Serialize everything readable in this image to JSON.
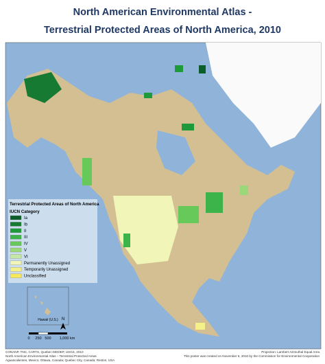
{
  "header": {
    "title": "North American Environmental Atlas -",
    "subtitle": "Terrestrial Protected Areas of North America, 2010"
  },
  "legend": {
    "title": "Terrestrial Protected Areas of North America",
    "subtitle": "IUCN Category",
    "items": [
      {
        "label": "Ia",
        "color": "#0b5e2a"
      },
      {
        "label": "Ib",
        "color": "#167a32"
      },
      {
        "label": "II",
        "color": "#1f9a3a"
      },
      {
        "label": "III",
        "color": "#3cb44a"
      },
      {
        "label": "IV",
        "color": "#66c95a"
      },
      {
        "label": "V",
        "color": "#9ad87a"
      },
      {
        "label": "VI",
        "color": "#c6e8a6"
      },
      {
        "label": "Permanently Unassigned",
        "color": "#f1f5b8"
      },
      {
        "label": "Temporarily Unassigned",
        "color": "#f4f08a"
      },
      {
        "label": "Unclassified",
        "color": "#f6e95a"
      }
    ]
  },
  "inset": {
    "label": "Hawaii (U.S.)"
  },
  "north_arrow": "N",
  "scale": {
    "labels": [
      "0",
      "250",
      "500",
      "1,000 km"
    ]
  },
  "credits": {
    "left": [
      "CONANP, TNC, CARTS, Quebec-MDDEP, USGS, 2010",
      "North American Environmental Atlas – Terrestrial Protected Areas",
      "Aguascalientes, Mexico; Ottawa, Canada; Quebec City, Canada; Reston, USA"
    ],
    "right": [
      "Projection: Lambert Azimuthal Equal Area",
      "This poster was created on November 6, 2010 by the Commission for Environmental Cooperation"
    ]
  }
}
